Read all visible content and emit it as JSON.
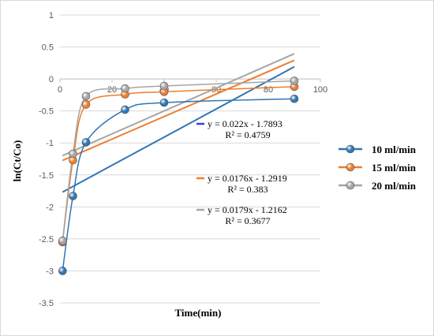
{
  "chart_data": {
    "type": "scatter",
    "title": "",
    "xlabel": "Time(min)",
    "ylabel": "ln(Ct/Co)",
    "xlim": [
      0,
      100
    ],
    "ylim": [
      -3.5,
      1
    ],
    "x_ticks": [
      "0",
      "20",
      "40",
      "60",
      "80",
      "100"
    ],
    "y_ticks": [
      "1",
      "0.5",
      "0",
      "-0.5",
      "-1",
      "-1.5",
      "-2",
      "-2.5",
      "-3",
      "-3.5"
    ],
    "grid": true,
    "legend_position": "right",
    "series": [
      {
        "name": "10 ml/min",
        "color": "#2e75b6",
        "x": [
          1,
          5,
          10,
          25,
          40,
          90
        ],
        "y": [
          -3.0,
          -1.83,
          -0.99,
          -0.48,
          -0.37,
          -0.31
        ],
        "trendline": {
          "slope": 0.022,
          "intercept": -1.7893,
          "equation": "y = 0.022x - 1.7893",
          "r2": "R² = 0.4759",
          "line_color": "#2e75b6",
          "swatch_color": "#3f3fc8"
        }
      },
      {
        "name": "15 ml/min",
        "color": "#ed7d31",
        "x": [
          1,
          5,
          10,
          25,
          40,
          90
        ],
        "y": [
          -2.55,
          -1.27,
          -0.4,
          -0.24,
          -0.2,
          -0.12
        ],
        "trendline": {
          "slope": 0.0176,
          "intercept": -1.2919,
          "equation": "y = 0.0176x - 1.2919",
          "r2": "R² = 0.383",
          "line_color": "#ed7d31",
          "swatch_color": "#ed7d31"
        }
      },
      {
        "name": "20 ml/min",
        "color": "#a5a5a5",
        "x": [
          1,
          5,
          10,
          25,
          40,
          90
        ],
        "y": [
          -2.53,
          -1.17,
          -0.27,
          -0.15,
          -0.11,
          -0.03
        ],
        "trendline": {
          "slope": 0.0179,
          "intercept": -1.2162,
          "equation": "y = 0.0179x - 1.2162",
          "r2": "R² = 0.3677",
          "line_color": "#a5a5a5",
          "swatch_color": "#a5a5a5"
        }
      }
    ]
  }
}
